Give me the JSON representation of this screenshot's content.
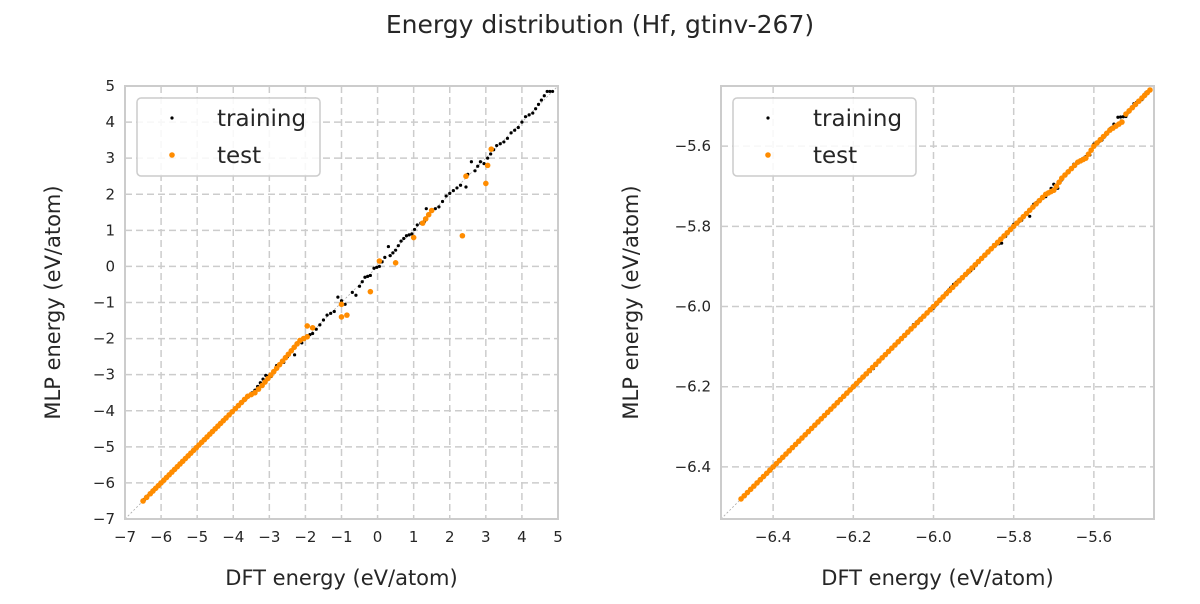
{
  "figure": {
    "title": "Energy distribution (Hf, gtinv-267)"
  },
  "colors": {
    "training": "#000000",
    "test": "#ff8c00",
    "grid": "#cccccc",
    "frame": "#cccccc",
    "diagonal": "#aaaaaa"
  },
  "chart_data": [
    {
      "type": "scatter",
      "xlabel": "DFT energy (eV/atom)",
      "ylabel": "MLP energy (eV/atom)",
      "xlim": [
        -7,
        5
      ],
      "ylim": [
        -7,
        5
      ],
      "xticks": [
        -7,
        -6,
        -5,
        -4,
        -3,
        -2,
        -1,
        0,
        1,
        2,
        3,
        4,
        5
      ],
      "yticks": [
        -7,
        -6,
        -5,
        -4,
        -3,
        -2,
        -1,
        0,
        1,
        2,
        3,
        4,
        5
      ],
      "grid": true,
      "legend_position": "upper-left",
      "diagonal": "y = x",
      "series": [
        {
          "name": "training",
          "color": "#000000",
          "marker_size": 1.6,
          "points": [
            [
              -6.45,
              -6.45
            ],
            [
              -6.2,
              -6.18
            ],
            [
              -5.9,
              -5.92
            ],
            [
              -5.5,
              -5.48
            ],
            [
              -5.0,
              -5.01
            ],
            [
              -4.6,
              -4.58
            ],
            [
              -4.2,
              -4.22
            ],
            [
              -3.8,
              -3.8
            ],
            [
              -3.4,
              -3.43
            ],
            [
              -3.1,
              -3.02
            ],
            [
              -2.95,
              -3.05
            ],
            [
              -2.8,
              -2.75
            ],
            [
              -2.6,
              -2.66
            ],
            [
              -2.4,
              -2.35
            ],
            [
              -2.3,
              -2.45
            ],
            [
              -2.1,
              -2.12
            ],
            [
              -1.95,
              -1.92
            ],
            [
              -1.8,
              -1.86
            ],
            [
              -1.6,
              -1.62
            ],
            [
              -1.4,
              -1.35
            ],
            [
              -1.2,
              -1.25
            ],
            [
              -1.0,
              -0.95
            ],
            [
              -0.9,
              -1.05
            ],
            [
              -0.7,
              -0.72
            ],
            [
              -0.5,
              -0.55
            ],
            [
              -0.35,
              -0.3
            ],
            [
              -0.2,
              -0.25
            ],
            [
              -0.1,
              -0.05
            ],
            [
              0.05,
              0.0
            ],
            [
              0.2,
              0.25
            ],
            [
              0.35,
              0.3
            ],
            [
              0.5,
              0.45
            ],
            [
              0.65,
              0.7
            ],
            [
              0.8,
              0.85
            ],
            [
              0.95,
              0.9
            ],
            [
              1.1,
              1.15
            ],
            [
              1.3,
              1.25
            ],
            [
              1.5,
              1.55
            ],
            [
              1.7,
              1.65
            ],
            [
              1.9,
              1.95
            ],
            [
              2.1,
              2.1
            ],
            [
              2.3,
              2.25
            ],
            [
              2.5,
              2.55
            ],
            [
              2.7,
              2.65
            ],
            [
              2.85,
              2.9
            ],
            [
              3.05,
              3.0
            ],
            [
              3.3,
              3.35
            ],
            [
              3.5,
              3.45
            ],
            [
              3.7,
              3.7
            ],
            [
              3.9,
              3.85
            ],
            [
              4.1,
              4.15
            ],
            [
              4.3,
              4.25
            ],
            [
              4.7,
              4.85
            ],
            [
              4.85,
              4.85
            ],
            [
              2.45,
              2.2
            ],
            [
              2.6,
              2.9
            ],
            [
              1.35,
              1.6
            ],
            [
              -0.6,
              -0.8
            ],
            [
              0.3,
              0.55
            ],
            [
              -1.1,
              -0.85
            ],
            [
              2.95,
              2.85
            ],
            [
              3.6,
              3.55
            ]
          ]
        },
        {
          "name": "test",
          "color": "#ff8c00",
          "marker_size": 2.8,
          "points": [
            [
              -6.5,
              -6.5
            ],
            [
              -6.3,
              -6.3
            ],
            [
              -6.0,
              -6.0
            ],
            [
              -5.7,
              -5.7
            ],
            [
              -5.4,
              -5.4
            ],
            [
              -5.1,
              -5.1
            ],
            [
              -4.8,
              -4.8
            ],
            [
              -4.5,
              -4.5
            ],
            [
              -4.2,
              -4.2
            ],
            [
              -3.6,
              -3.6
            ],
            [
              -3.4,
              -3.5
            ],
            [
              -3.2,
              -3.3
            ],
            [
              -2.15,
              -2.05
            ],
            [
              -1.95,
              -1.95
            ],
            [
              -1.8,
              -1.7
            ],
            [
              -1.95,
              -1.65
            ],
            [
              -1.0,
              -1.4
            ],
            [
              -0.85,
              -1.35
            ],
            [
              -1.0,
              -1.05
            ],
            [
              -0.2,
              -0.7
            ],
            [
              0.05,
              0.15
            ],
            [
              0.5,
              0.1
            ],
            [
              1.0,
              0.8
            ],
            [
              1.25,
              1.2
            ],
            [
              1.5,
              1.55
            ],
            [
              2.35,
              0.85
            ],
            [
              2.45,
              2.5
            ],
            [
              3.0,
              2.3
            ],
            [
              3.05,
              2.8
            ],
            [
              3.15,
              3.25
            ]
          ]
        }
      ]
    },
    {
      "type": "scatter",
      "xlabel": "DFT energy (eV/atom)",
      "ylabel": "MLP energy (eV/atom)",
      "xlim": [
        -6.53,
        -5.45
      ],
      "ylim": [
        -6.53,
        -5.45
      ],
      "xticks": [
        -6.4,
        -6.2,
        -6.0,
        -5.8,
        -5.6
      ],
      "yticks": [
        -6.4,
        -6.2,
        -6.0,
        -5.8,
        -5.6
      ],
      "tick_labels": [
        "−6.4",
        "−6.2",
        "−6.0",
        "−5.8",
        "−5.6"
      ],
      "grid": true,
      "legend_position": "upper-left",
      "diagonal": "y = x",
      "series": [
        {
          "name": "training",
          "color": "#000000",
          "marker_size": 1.6,
          "points": [
            [
              -6.45,
              -6.45
            ],
            [
              -6.35,
              -6.352
            ],
            [
              -6.25,
              -6.247
            ],
            [
              -6.15,
              -6.155
            ],
            [
              -6.05,
              -6.045
            ],
            [
              -6.0,
              -6.004
            ],
            [
              -5.95,
              -5.945
            ],
            [
              -5.9,
              -5.905
            ],
            [
              -5.85,
              -5.846
            ],
            [
              -5.82,
              -5.825
            ],
            [
              -5.8,
              -5.795
            ],
            [
              -5.78,
              -5.785
            ],
            [
              -5.75,
              -5.745
            ],
            [
              -5.72,
              -5.726
            ],
            [
              -5.7,
              -5.695
            ],
            [
              -5.68,
              -5.684
            ],
            [
              -5.65,
              -5.645
            ],
            [
              -5.62,
              -5.626
            ],
            [
              -5.6,
              -5.595
            ],
            [
              -5.58,
              -5.585
            ],
            [
              -5.55,
              -5.545
            ],
            [
              -5.52,
              -5.526
            ],
            [
              -5.5,
              -5.494
            ],
            [
              -5.48,
              -5.484
            ],
            [
              -5.47,
              -5.466
            ],
            [
              -5.76,
              -5.775
            ],
            [
              -5.69,
              -5.705
            ],
            [
              -5.61,
              -5.622
            ],
            [
              -5.54,
              -5.528
            ],
            [
              -5.83,
              -5.842
            ]
          ]
        },
        {
          "name": "test",
          "color": "#ff8c00",
          "marker_size": 2.8,
          "points": [
            [
              -6.48,
              -6.48
            ],
            [
              -6.44,
              -6.44
            ],
            [
              -6.4,
              -6.4
            ],
            [
              -6.36,
              -6.36
            ],
            [
              -6.32,
              -6.32
            ],
            [
              -6.28,
              -6.28
            ],
            [
              -6.24,
              -6.24
            ],
            [
              -6.2,
              -6.2
            ],
            [
              -6.16,
              -6.16
            ],
            [
              -6.12,
              -6.12
            ],
            [
              -6.08,
              -6.08
            ],
            [
              -6.04,
              -6.04
            ],
            [
              -6.0,
              -6.0
            ],
            [
              -5.96,
              -5.96
            ],
            [
              -5.92,
              -5.92
            ],
            [
              -5.88,
              -5.88
            ],
            [
              -5.84,
              -5.84
            ],
            [
              -5.8,
              -5.8
            ],
            [
              -5.76,
              -5.76
            ],
            [
              -5.72,
              -5.72
            ],
            [
              -5.68,
              -5.68
            ],
            [
              -5.64,
              -5.64
            ],
            [
              -5.6,
              -5.6
            ],
            [
              -5.56,
              -5.56
            ],
            [
              -5.52,
              -5.52
            ],
            [
              -5.48,
              -5.48
            ],
            [
              -5.46,
              -5.46
            ],
            [
              -5.7,
              -5.71
            ],
            [
              -5.62,
              -5.63
            ],
            [
              -5.53,
              -5.54
            ]
          ]
        }
      ]
    }
  ]
}
